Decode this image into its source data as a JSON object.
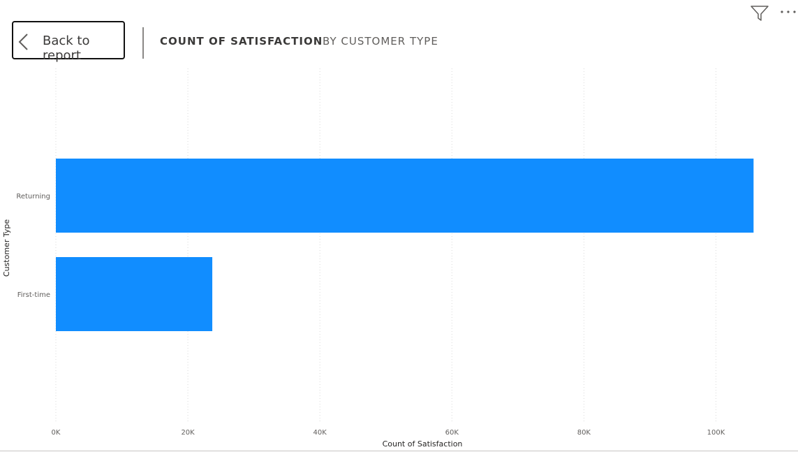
{
  "toolbar": {
    "back_label": "Back to report",
    "back_icon": "chevron-left-icon",
    "filter_icon": "filter-icon",
    "more_icon": "more-options-icon"
  },
  "header": {
    "title_main": "COUNT OF SATISFACTION",
    "title_sub": "BY CUSTOMER TYPE"
  },
  "chart_data": {
    "type": "bar",
    "orientation": "horizontal",
    "categories": [
      "Returning",
      "First-time"
    ],
    "values": [
      105700,
      23700
    ],
    "xlabel": "Count of Satisfaction",
    "ylabel": "Customer Type",
    "xlim": [
      0,
      110000
    ],
    "x_ticks": [
      0,
      20000,
      40000,
      60000,
      80000,
      100000
    ],
    "x_tick_labels": [
      "0K",
      "20K",
      "40K",
      "60K",
      "80K",
      "100K"
    ],
    "grid": "vertical dotted",
    "legend": "none",
    "bar_color": "#118dff"
  }
}
